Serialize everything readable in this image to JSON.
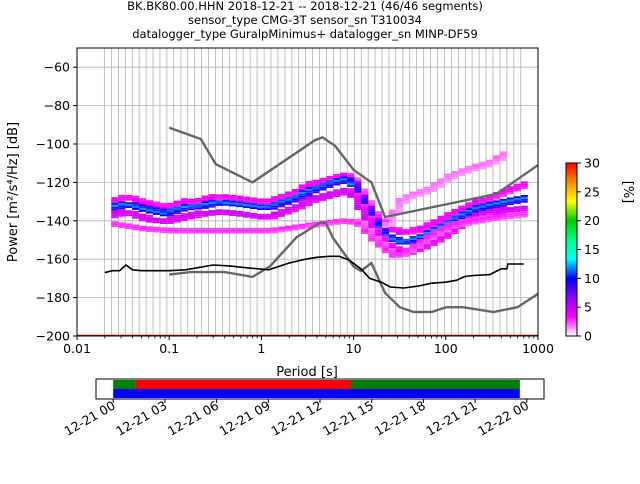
{
  "chart_data": {
    "type": "heatmap",
    "title_lines": [
      "BK.BK80.00.HHN   2018-12-21 -- 2018-12-21  (46/46 segments)",
      "sensor_type CMG-3T sensor_sn T310034",
      "datalogger_type GuralpMinimus+ datalogger_sn MINP-DF59"
    ],
    "xlabel": "Period [s]",
    "ylabel": "Power [m²/s⁴/Hz] [dB]",
    "xscale": "log",
    "xlim": [
      0.01,
      1000
    ],
    "ylim": [
      -200,
      -50
    ],
    "x_ticks": [
      {
        "value": 0.01,
        "label": "0.01"
      },
      {
        "value": 0.1,
        "label": "0.1"
      },
      {
        "value": 1,
        "label": "1"
      },
      {
        "value": 10,
        "label": "10"
      },
      {
        "value": 100,
        "label": "100"
      },
      {
        "value": 1000,
        "label": "1000"
      }
    ],
    "y_ticks": [
      {
        "value": -60,
        "label": "−60"
      },
      {
        "value": -80,
        "label": "−80"
      },
      {
        "value": -100,
        "label": "−100"
      },
      {
        "value": -120,
        "label": "−120"
      },
      {
        "value": -140,
        "label": "−140"
      },
      {
        "value": -160,
        "label": "−160"
      },
      {
        "value": -180,
        "label": "−180"
      },
      {
        "value": -200,
        "label": "−200"
      }
    ],
    "grid": true,
    "grid_periods": [
      0.0198,
      0.0236,
      0.0281,
      0.0334,
      0.0397,
      0.0472,
      0.0562,
      0.0668,
      0.0794,
      0.0944,
      0.112,
      0.134,
      0.159,
      0.189,
      0.225,
      0.267,
      0.318,
      0.378,
      0.449,
      0.534,
      0.635,
      0.755,
      0.898,
      1.07,
      1.27,
      1.51,
      1.8,
      2.14,
      2.54,
      3.02,
      3.59,
      4.27,
      5.08,
      6.04,
      7.18,
      8.54,
      10.2,
      12.1,
      14.4,
      17.1,
      20.3,
      24.2,
      28.7,
      34.2,
      40.6,
      48.3,
      57.5,
      68.3,
      81.3,
      96.6,
      115,
      137,
      163,
      193,
      230,
      273,
      325,
      387,
      460,
      547,
      650
    ],
    "colorbar": {
      "label": "[%]",
      "range": [
        0,
        30
      ],
      "ticks": [
        {
          "value": 0,
          "label": "0"
        },
        {
          "value": 5,
          "label": "5"
        },
        {
          "value": 10,
          "label": "10"
        },
        {
          "value": 15,
          "label": "15"
        },
        {
          "value": 20,
          "label": "20"
        },
        {
          "value": 25,
          "label": "25"
        },
        {
          "value": 30,
          "label": "30"
        }
      ],
      "colors": [
        "#ffffff",
        "#ff00ff",
        "#8a00ff",
        "#0000ff",
        "#00ffff",
        "#00ff7f",
        "#00cc00",
        "#ffff00",
        "#ff8c00",
        "#ff0000"
      ]
    },
    "noise_models": {
      "color": "#666666",
      "high": [
        [
          0.1,
          -91.5
        ],
        [
          0.22,
          -97.4
        ],
        [
          0.32,
          -110.5
        ],
        [
          0.8,
          -120
        ],
        [
          3.8,
          -98
        ],
        [
          4.6,
          -96.5
        ],
        [
          6.3,
          -101
        ],
        [
          10,
          -113.5
        ],
        [
          15.6,
          -120
        ],
        [
          21.9,
          -138
        ],
        [
          354.8,
          -126
        ],
        [
          1000,
          -111
        ]
      ],
      "low": [
        [
          0.1,
          -168
        ],
        [
          0.17,
          -166.7
        ],
        [
          0.4,
          -166.7
        ],
        [
          0.8,
          -169.2
        ],
        [
          1.24,
          -163.7
        ],
        [
          2.4,
          -148.6
        ],
        [
          4.3,
          -141.1
        ],
        [
          5,
          -141.1
        ],
        [
          6,
          -149
        ],
        [
          10,
          -163.8
        ],
        [
          12,
          -166.2
        ],
        [
          15.6,
          -162
        ],
        [
          21.9,
          -177.5
        ],
        [
          31.6,
          -185
        ],
        [
          45,
          -187.5
        ],
        [
          70,
          -187.5
        ],
        [
          101,
          -185
        ],
        [
          154,
          -185
        ],
        [
          328,
          -187.5
        ],
        [
          600,
          -185
        ],
        [
          1000,
          -178
        ]
      ]
    },
    "mode_line": {
      "color": "#000000",
      "points": [
        [
          0.02,
          -167
        ],
        [
          0.024,
          -166
        ],
        [
          0.029,
          -166
        ],
        [
          0.034,
          -163
        ],
        [
          0.04,
          -165.5
        ],
        [
          0.05,
          -166
        ],
        [
          0.08,
          -166
        ],
        [
          0.1,
          -166
        ],
        [
          0.15,
          -165.5
        ],
        [
          0.2,
          -164.5
        ],
        [
          0.3,
          -163
        ],
        [
          0.45,
          -163.5
        ],
        [
          0.7,
          -164.5
        ],
        [
          1.2,
          -165.5
        ],
        [
          2,
          -162
        ],
        [
          3,
          -160
        ],
        [
          4,
          -159
        ],
        [
          5.5,
          -158.5
        ],
        [
          7,
          -158.5
        ],
        [
          9,
          -160.5
        ],
        [
          12,
          -165
        ],
        [
          15,
          -170
        ],
        [
          20,
          -172
        ],
        [
          25,
          -174.5
        ],
        [
          35,
          -175
        ],
        [
          50,
          -174
        ],
        [
          70,
          -172.5
        ],
        [
          100,
          -172
        ],
        [
          130,
          -171
        ],
        [
          160,
          -169
        ],
        [
          200,
          -168.5
        ],
        [
          300,
          -168
        ],
        [
          400,
          -165
        ],
        [
          460,
          -165
        ],
        [
          470,
          -162.5
        ],
        [
          700,
          -162.5
        ]
      ]
    },
    "density_bands": [
      {
        "name": "upper",
        "level": 4,
        "points": [
          [
            0.02,
            -130
          ],
          [
            0.03,
            -127
          ],
          [
            0.05,
            -131
          ],
          [
            0.08,
            -133
          ],
          [
            0.12,
            -130
          ],
          [
            0.2,
            -129
          ],
          [
            0.3,
            -127
          ],
          [
            0.5,
            -128
          ],
          [
            1,
            -130
          ],
          [
            2,
            -125
          ],
          [
            3,
            -121
          ],
          [
            5,
            -118
          ],
          [
            8,
            -116
          ],
          [
            10,
            -124
          ],
          [
            15,
            -138
          ],
          [
            20,
            -143
          ],
          [
            30,
            -146
          ],
          [
            50,
            -144
          ],
          [
            80,
            -139
          ],
          [
            120,
            -135
          ],
          [
            200,
            -130
          ],
          [
            400,
            -124
          ],
          [
            700,
            -120
          ]
        ]
      },
      {
        "name": "main",
        "level": 12,
        "points": [
          [
            0.02,
            -133
          ],
          [
            0.03,
            -131
          ],
          [
            0.05,
            -134
          ],
          [
            0.08,
            -136
          ],
          [
            0.12,
            -133
          ],
          [
            0.2,
            -132
          ],
          [
            0.3,
            -130
          ],
          [
            0.5,
            -131
          ],
          [
            1,
            -133
          ],
          [
            2,
            -128
          ],
          [
            3,
            -124
          ],
          [
            5,
            -120
          ],
          [
            8,
            -118
          ],
          [
            10,
            -127
          ],
          [
            15,
            -141
          ],
          [
            20,
            -148
          ],
          [
            30,
            -151
          ],
          [
            50,
            -148
          ],
          [
            80,
            -143
          ],
          [
            120,
            -138
          ],
          [
            200,
            -133
          ],
          [
            400,
            -130
          ],
          [
            700,
            -128
          ]
        ]
      },
      {
        "name": "lower",
        "level": 5,
        "points": [
          [
            0.02,
            -137
          ],
          [
            0.03,
            -135
          ],
          [
            0.05,
            -139
          ],
          [
            0.08,
            -140
          ],
          [
            0.12,
            -138
          ],
          [
            0.2,
            -136
          ],
          [
            0.3,
            -135
          ],
          [
            0.5,
            -136
          ],
          [
            1,
            -138
          ],
          [
            2,
            -133
          ],
          [
            3,
            -129
          ],
          [
            5,
            -126
          ],
          [
            8,
            -124
          ],
          [
            10,
            -132
          ],
          [
            15,
            -146
          ],
          [
            20,
            -153
          ],
          [
            30,
            -157
          ],
          [
            50,
            -153
          ],
          [
            80,
            -148
          ],
          [
            120,
            -142
          ],
          [
            200,
            -137
          ],
          [
            400,
            -134
          ],
          [
            700,
            -133
          ]
        ]
      },
      {
        "name": "lowest",
        "level": 3,
        "points": [
          [
            0.02,
            -141
          ],
          [
            0.05,
            -144
          ],
          [
            0.1,
            -145
          ],
          [
            0.3,
            -145
          ],
          [
            0.6,
            -145
          ],
          [
            1,
            -145
          ],
          [
            2,
            -143
          ],
          [
            4,
            -141
          ],
          [
            6,
            -140
          ],
          [
            8,
            -140
          ],
          [
            10,
            -141
          ],
          [
            12,
            -145
          ],
          [
            15,
            -150
          ],
          [
            20,
            -155
          ],
          [
            25,
            -158
          ],
          [
            30,
            -157
          ],
          [
            50,
            -150
          ],
          [
            100,
            -142
          ],
          [
            300,
            -138
          ],
          [
            700,
            -136
          ]
        ]
      },
      {
        "name": "high-sparse",
        "level": 2,
        "points": [
          [
            20,
            -142
          ],
          [
            30,
            -128
          ],
          [
            60,
            -123
          ],
          [
            100,
            -116
          ],
          [
            150,
            -113
          ],
          [
            250,
            -110
          ],
          [
            400,
            -105
          ]
        ]
      }
    ],
    "timeline": {
      "tick_labels": [
        "12-21 00",
        "12-21 03",
        "12-21 06",
        "12-21 09",
        "12-21 12",
        "12-21 15",
        "12-21 18",
        "12-21 21",
        "12-22 00"
      ],
      "tick_hours": [
        0,
        3,
        6,
        9,
        12,
        15,
        18,
        21,
        24
      ],
      "range_hours": [
        -1,
        25
      ],
      "coverage_rows": [
        {
          "name": "row-top",
          "segments": [
            {
              "start": 0,
              "end": 1.3,
              "color": "#008000"
            },
            {
              "start": 1.3,
              "end": 13.8,
              "color": "#ff0000"
            },
            {
              "start": 13.8,
              "end": 23.6,
              "color": "#008000"
            }
          ]
        },
        {
          "name": "row-bottom",
          "segments": [
            {
              "start": 0,
              "end": 23.6,
              "color": "#0000ff"
            }
          ]
        }
      ]
    }
  }
}
